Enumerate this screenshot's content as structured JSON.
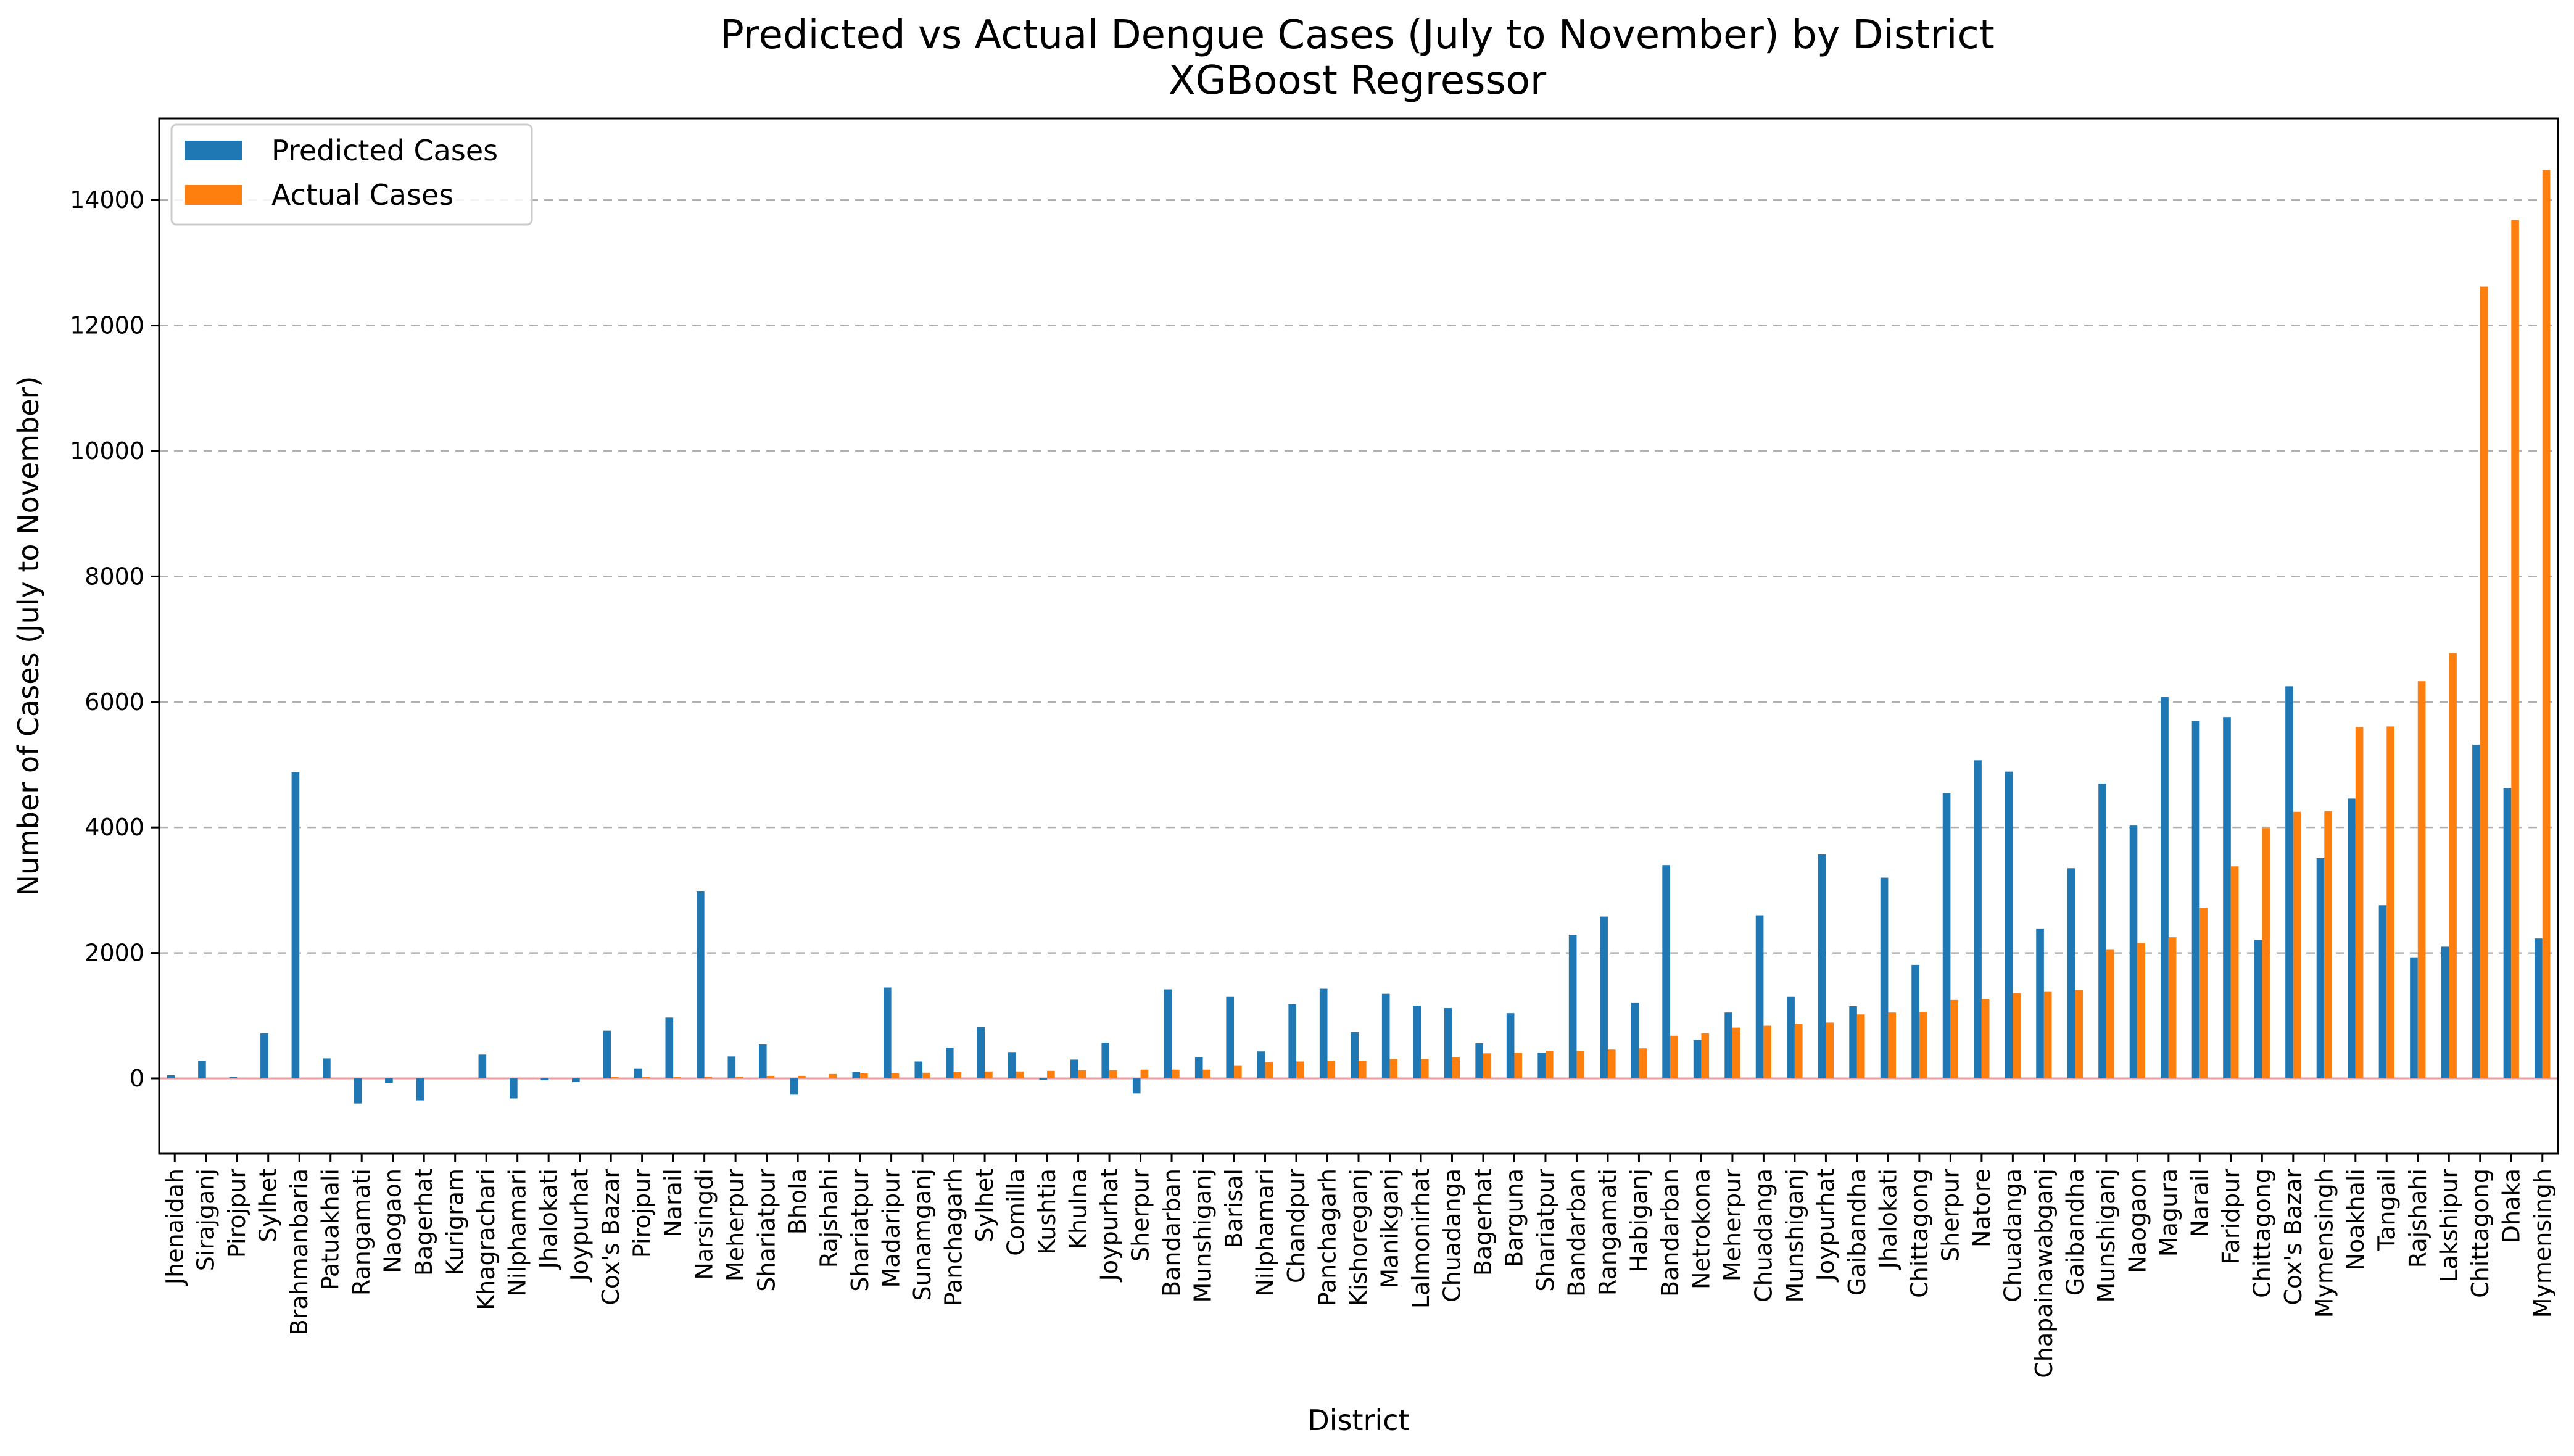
{
  "chart_data": {
    "type": "bar",
    "title": "Predicted vs Actual Dengue Cases (July to November) by District",
    "subtitle": "XGBoost Regressor",
    "xlabel": "District",
    "ylabel": "Number of Cases (July to November)",
    "ylim": [
      -1200,
      15300
    ],
    "yticks": [
      0,
      2000,
      4000,
      6000,
      8000,
      10000,
      12000,
      14000
    ],
    "grid": "y-dashed",
    "legend": "top-left",
    "colors": {
      "predicted": "#1f77b4",
      "actual": "#ff7f0e",
      "grid": "#b0b0b0",
      "zero_line": "#e7a0a0"
    },
    "categories": [
      "Jhenaidah",
      "Sirajganj",
      "Pirojpur",
      "Sylhet",
      "Brahmanbaria",
      "Patuakhali",
      "Rangamati",
      "Naogaon",
      "Bagerhat",
      "Kurigram",
      "Khagrachari",
      "Nilphamari",
      "Jhalokati",
      "Joypurhat",
      "Cox's Bazar",
      "Pirojpur",
      "Narail",
      "Narsingdi",
      "Meherpur",
      "Shariatpur",
      "Bhola",
      "Rajshahi",
      "Shariatpur",
      "Madaripur",
      "Sunamganj",
      "Panchagarh",
      "Sylhet",
      "Comilla",
      "Kushtia",
      "Khulna",
      "Joypurhat",
      "Sherpur",
      "Bandarban",
      "Munshiganj",
      "Barisal",
      "Nilphamari",
      "Chandpur",
      "Panchagarh",
      "Kishoreganj",
      "Manikganj",
      "Lalmonirhat",
      "Chuadanga",
      "Bagerhat",
      "Barguna",
      "Shariatpur",
      "Bandarban",
      "Rangamati",
      "Habiganj",
      "Bandarban",
      "Netrokona",
      "Meherpur",
      "Chuadanga",
      "Munshiganj",
      "Joypurhat",
      "Gaibandha",
      "Jhalokati",
      "Chittagong",
      "Sherpur",
      "Natore",
      "Chuadanga",
      "Chapainawabganj",
      "Gaibandha",
      "Munshiganj",
      "Naogaon",
      "Magura",
      "Narail",
      "Faridpur",
      "Chittagong",
      "Cox's Bazar",
      "Mymensingh",
      "Noakhali",
      "Tangail",
      "Rajshahi",
      "Lakshipur",
      "Chittagong",
      "Dhaka",
      "Mymensingh"
    ],
    "series": [
      {
        "name": "Predicted Cases",
        "values": [
          50,
          280,
          20,
          720,
          4880,
          320,
          -400,
          -70,
          -350,
          0,
          380,
          -320,
          -30,
          -60,
          760,
          160,
          970,
          2980,
          350,
          540,
          -260,
          0,
          100,
          1450,
          270,
          490,
          820,
          420,
          -20,
          300,
          570,
          -240,
          1420,
          340,
          1300,
          430,
          1180,
          1430,
          740,
          1350,
          1160,
          1120,
          560,
          1040,
          410,
          2290,
          2580,
          1210,
          3400,
          610,
          1050,
          2600,
          1300,
          3570,
          1150,
          3200,
          1810,
          4550,
          5070,
          4890,
          2390,
          3350,
          4700,
          4030,
          6080,
          5700,
          5760,
          2210,
          6250,
          3510,
          4460,
          2760,
          1930,
          2100,
          5320,
          4630,
          2230
        ]
      },
      {
        "name": "Actual Cases",
        "values": [
          0,
          0,
          0,
          0,
          0,
          0,
          0,
          0,
          0,
          0,
          0,
          0,
          0,
          0,
          20,
          20,
          20,
          30,
          30,
          40,
          40,
          70,
          80,
          80,
          90,
          100,
          110,
          110,
          120,
          130,
          130,
          140,
          140,
          140,
          200,
          260,
          270,
          280,
          280,
          310,
          310,
          340,
          400,
          410,
          440,
          440,
          460,
          480,
          680,
          720,
          810,
          840,
          870,
          890,
          1020,
          1050,
          1060,
          1250,
          1260,
          1360,
          1380,
          1410,
          2050,
          2160,
          2250,
          2720,
          3380,
          3990,
          4250,
          4260,
          5600,
          5610,
          6330,
          6780,
          12620,
          13680,
          14480
        ]
      }
    ]
  }
}
